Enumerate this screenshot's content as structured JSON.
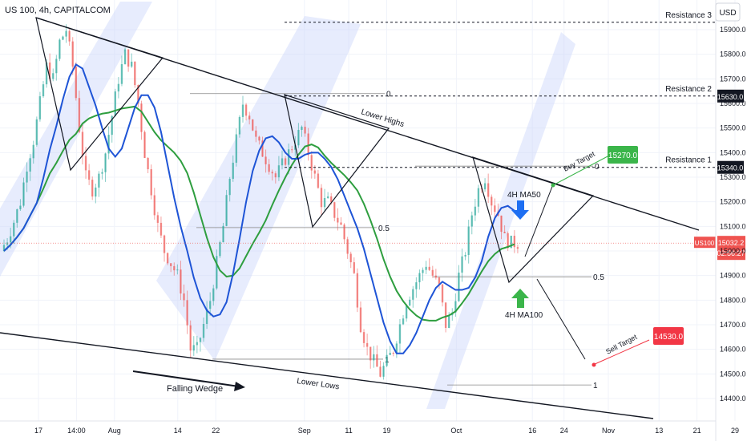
{
  "header": {
    "symbol": "US 100, 4h, CAPITALCOM",
    "currency": "USD"
  },
  "chart_data": {
    "type": "candlestick",
    "instrument": "US 100",
    "timeframe": "4h",
    "ylim": [
      14330,
      16010
    ],
    "x_tick_labels": [
      {
        "text": "17",
        "t": 0
      },
      {
        "text": "14:00",
        "t": 6
      },
      {
        "text": "Aug",
        "t": 12
      },
      {
        "text": "14",
        "t": 22
      },
      {
        "text": "22",
        "t": 28
      },
      {
        "text": "Sep",
        "t": 42
      },
      {
        "text": "11",
        "t": 49
      },
      {
        "text": "19",
        "t": 55
      },
      {
        "text": "Oct",
        "t": 66
      },
      {
        "text": "16",
        "t": 78
      },
      {
        "text": "24",
        "t": 83
      },
      {
        "text": "Nov",
        "t": 90
      },
      {
        "text": "13",
        "t": 98
      },
      {
        "text": "21",
        "t": 104
      },
      {
        "text": "29",
        "t": 110
      }
    ],
    "y_ticks": [
      14400,
      14500,
      14600,
      14700,
      14800,
      14900,
      15000,
      15100,
      15200,
      15300,
      15400,
      15500,
      15600,
      15700,
      15800,
      15900
    ],
    "closes": [
      15000,
      15050,
      15120,
      15200,
      15350,
      15450,
      15600,
      15750,
      15700,
      15850,
      15900,
      15750,
      15500,
      15300,
      15250,
      15300,
      15400,
      15550,
      15700,
      15800,
      15750,
      15600,
      15400,
      15250,
      15100,
      15000,
      14950,
      14900,
      14800,
      14600,
      14600,
      14700,
      14800,
      14950,
      15100,
      15300,
      15450,
      15600,
      15550,
      15450,
      15400,
      15350,
      15300,
      15350,
      15400,
      15450,
      15500,
      15400,
      15300,
      15200,
      15200,
      15150,
      15100,
      15000,
      14900,
      14700,
      14600,
      14550,
      14500,
      14550,
      14600,
      14700,
      14800,
      14850,
      14900,
      14950,
      14900,
      14850,
      14700,
      14750,
      14900,
      15000,
      15150,
      15250,
      15300,
      15200,
      15150,
      15050,
      15032
    ],
    "series": [
      {
        "name": "4H MA50",
        "color": "#1e54d6"
      },
      {
        "name": "4H MA100",
        "color": "#2e9e3f"
      }
    ],
    "horizontal_levels": [
      {
        "label": "Resistance 3",
        "price": 15930,
        "tag": ""
      },
      {
        "label": "Resistance 2",
        "price": 15630,
        "tag": "15630.0"
      },
      {
        "label": "Resistance 1",
        "price": 15340,
        "tag": "15340.0"
      }
    ],
    "fib_levels": [
      {
        "label": "0",
        "price": 15640
      },
      {
        "label": "0.5",
        "price": 15095
      },
      {
        "label": "1",
        "price": 14560
      },
      {
        "label": "0",
        "price": 15345
      },
      {
        "label": "0.5",
        "price": 14895
      },
      {
        "label": "1",
        "price": 14455
      }
    ],
    "current_price": {
      "symbol": "US100",
      "value": "15032.2",
      "countdown": "02:56:27",
      "price": 15032
    },
    "targets": [
      {
        "label": "Buy Target",
        "value": "15270.0",
        "price": 15270,
        "color": "#3bb54a"
      },
      {
        "label": "Sell Target",
        "value": "14530.0",
        "price": 14530,
        "color": "#f23645"
      }
    ],
    "annotations": {
      "lower_highs": "Lower Highs",
      "lower_lows": "Lower Lows",
      "falling_wedge": "Falling Wedge",
      "ma50": "4H MA50",
      "ma100": "4H MA100"
    }
  }
}
